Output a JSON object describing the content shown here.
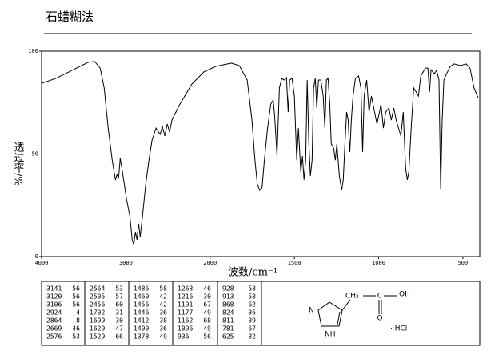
{
  "header": {
    "title": "石蜡糊法"
  },
  "chart_data": {
    "type": "line",
    "x_label": "波数/cm⁻¹",
    "y_label": "透过率/%",
    "color": "#000000",
    "xlim": [
      4000,
      400
    ],
    "xticks": [
      4000,
      3000,
      2000,
      1500,
      1000,
      500
    ],
    "ylim": [
      0,
      100
    ],
    "yticks": [
      0,
      50,
      100
    ],
    "grid": false,
    "x": [
      4000,
      3829,
      3638,
      3448,
      3371,
      3305,
      3257,
      3210,
      3162,
      3124,
      3105,
      3086,
      3067,
      3048,
      3019,
      2991,
      2953,
      2925,
      2906,
      2887,
      2868,
      2849,
      2830,
      2802,
      2764,
      2726,
      2689,
      2642,
      2594,
      2566,
      2538,
      2509,
      2481,
      2453,
      2358,
      2217,
      2075,
      1967,
      1874,
      1827,
      1780,
      1752,
      1734,
      1720,
      1706,
      1692,
      1678,
      1659,
      1640,
      1626,
      1617,
      1603,
      1589,
      1575,
      1561,
      1547,
      1537,
      1528,
      1514,
      1500,
      1486,
      1476,
      1462,
      1452,
      1443,
      1433,
      1424,
      1414,
      1405,
      1395,
      1386,
      1376,
      1367,
      1357,
      1343,
      1329,
      1319,
      1310,
      1300,
      1290,
      1281,
      1267,
      1257,
      1248,
      1233,
      1219,
      1210,
      1200,
      1190,
      1181,
      1171,
      1162,
      1152,
      1138,
      1119,
      1105,
      1095,
      1086,
      1071,
      1057,
      1043,
      1024,
      1010,
      995,
      986,
      972,
      958,
      939,
      925,
      910,
      896,
      882,
      868,
      854,
      840,
      830,
      821,
      807,
      792,
      778,
      764,
      750,
      736,
      722,
      708,
      698,
      689,
      670,
      656,
      642,
      632,
      623,
      613,
      599,
      575,
      552,
      514,
      481,
      458,
      434,
      410
    ],
    "values": [
      84.4,
      86.8,
      90.7,
      94.6,
      95,
      91.8,
      82,
      62.6,
      47,
      37.4,
      40,
      38.5,
      47.9,
      43.2,
      35.4,
      27.6,
      19.8,
      8.2,
      5.8,
      12,
      8.2,
      16,
      9.7,
      19.8,
      35.4,
      47,
      56.8,
      62.6,
      59.5,
      63.4,
      58.8,
      64.6,
      60.7,
      66.5,
      74.3,
      84,
      89.9,
      92.6,
      94.2,
      93,
      86,
      66.5,
      47,
      35.4,
      32.3,
      33.5,
      47,
      62.6,
      74.3,
      76.3,
      68.5,
      49,
      82.1,
      86.8,
      86,
      87.2,
      70.4,
      86,
      86.8,
      78.2,
      47,
      62.6,
      41.2,
      49,
      37.4,
      47,
      86,
      54.9,
      39.3,
      47,
      82.1,
      86.8,
      72.4,
      86,
      86,
      78.2,
      62.6,
      86,
      86.8,
      74.3,
      54.9,
      52.9,
      47,
      54.9,
      39.3,
      32.3,
      37.4,
      54.9,
      70.4,
      66.5,
      51,
      66.5,
      78.2,
      86.8,
      88,
      82.1,
      51,
      78.2,
      86,
      70.4,
      78.2,
      70.4,
      64.6,
      70.4,
      74.3,
      62.6,
      70.4,
      72.4,
      66.5,
      72.4,
      66.5,
      62.6,
      58.8,
      70.4,
      43.2,
      37.4,
      41.2,
      62.6,
      82.1,
      80.2,
      78.2,
      88,
      89.9,
      91.8,
      91.8,
      80.2,
      91,
      89.1,
      90.7,
      86,
      32.7,
      66.5,
      86,
      88.7,
      92.6,
      93.8,
      93,
      93.8,
      91.8,
      82.1,
      77.4
    ]
  },
  "peak_table": {
    "columns": [
      [
        [
          3141,
          56
        ],
        [
          3120,
          56
        ],
        [
          3106,
          56
        ],
        [
          2924,
          4
        ],
        [
          2864,
          8
        ],
        [
          2669,
          46
        ],
        [
          2576,
          53
        ]
      ],
      [
        [
          2564,
          53
        ],
        [
          2505,
          57
        ],
        [
          2456,
          60
        ],
        [
          1702,
          31
        ],
        [
          1699,
          30
        ],
        [
          1629,
          47
        ],
        [
          1529,
          66
        ]
      ],
      [
        [
          1486,
          58
        ],
        [
          1460,
          42
        ],
        [
          1456,
          42
        ],
        [
          1446,
          36
        ],
        [
          1412,
          38
        ],
        [
          1400,
          36
        ],
        [
          1378,
          49
        ]
      ],
      [
        [
          1263,
          46
        ],
        [
          1216,
          30
        ],
        [
          1191,
          67
        ],
        [
          1177,
          49
        ],
        [
          1162,
          68
        ],
        [
          1096,
          49
        ],
        [
          936,
          56
        ]
      ],
      [
        [
          928,
          58
        ],
        [
          913,
          58
        ],
        [
          868,
          62
        ],
        [
          824,
          36
        ],
        [
          811,
          39
        ],
        [
          781,
          67
        ],
        [
          625,
          32
        ]
      ]
    ]
  },
  "structure": {
    "ch2": "CH₂",
    "c": "C",
    "oh": "OH",
    "o": "O",
    "n": "N",
    "nh": "NH",
    "salt": "· HCl"
  }
}
